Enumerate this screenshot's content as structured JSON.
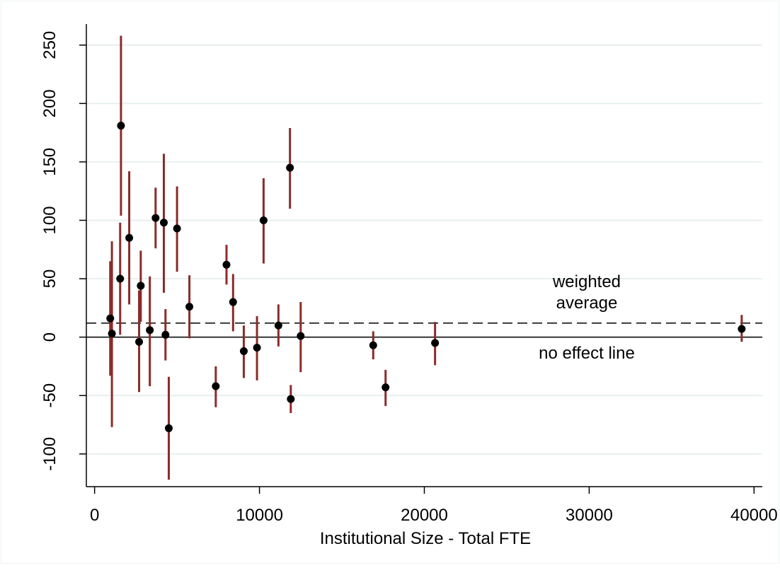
{
  "chart_data": {
    "type": "scatter",
    "subtype": "point estimates with confidence interval bars",
    "title": "",
    "xlabel": "Institutional Size - Total FTE",
    "ylabel": "",
    "xlim": [
      -500,
      40500
    ],
    "ylim": [
      -128,
      268
    ],
    "x_ticks": [
      0,
      10000,
      20000,
      30000,
      40000
    ],
    "x_tick_labels": [
      "0",
      "10000",
      "20000",
      "30000",
      "40000"
    ],
    "y_ticks": [
      -100,
      -50,
      0,
      50,
      100,
      150,
      200,
      250
    ],
    "y_tick_labels": [
      "-100",
      "-50",
      "0",
      "50",
      "100",
      "150",
      "200",
      "250"
    ],
    "y_grid": true,
    "x_grid": false,
    "reference_lines": [
      {
        "value": 0,
        "style": "solid",
        "label": "no effect line"
      },
      {
        "value": 12,
        "style": "dashed",
        "label_lines": [
          "weighted",
          "average"
        ]
      }
    ],
    "colors": {
      "marker": "#000000",
      "interval": "#8b2b2b",
      "grid": "#e8efef",
      "background": "#ffffff"
    },
    "points": [
      {
        "x": 950,
        "y": 16,
        "lo": -33,
        "hi": 65
      },
      {
        "x": 1050,
        "y": 3,
        "lo": -77,
        "hi": 82
      },
      {
        "x": 1550,
        "y": 50,
        "lo": 2,
        "hi": 98
      },
      {
        "x": 1600,
        "y": 181,
        "lo": 104,
        "hi": 258
      },
      {
        "x": 2100,
        "y": 85,
        "lo": 28,
        "hi": 142
      },
      {
        "x": 2700,
        "y": -4,
        "lo": -47,
        "hi": 40
      },
      {
        "x": 2800,
        "y": 44,
        "lo": 13,
        "hi": 74
      },
      {
        "x": 3350,
        "y": 6,
        "lo": -42,
        "hi": 52
      },
      {
        "x": 3700,
        "y": 102,
        "lo": 76,
        "hi": 128
      },
      {
        "x": 4200,
        "y": 98,
        "lo": 38,
        "hi": 157
      },
      {
        "x": 4300,
        "y": 2,
        "lo": -20,
        "hi": 24
      },
      {
        "x": 4500,
        "y": -78,
        "lo": -122,
        "hi": -34
      },
      {
        "x": 5000,
        "y": 93,
        "lo": 56,
        "hi": 129
      },
      {
        "x": 5750,
        "y": 26,
        "lo": -1,
        "hi": 53
      },
      {
        "x": 7350,
        "y": -42,
        "lo": -60,
        "hi": -25
      },
      {
        "x": 8000,
        "y": 62,
        "lo": 45,
        "hi": 79
      },
      {
        "x": 8400,
        "y": 30,
        "lo": 5,
        "hi": 54
      },
      {
        "x": 9050,
        "y": -12,
        "lo": -35,
        "hi": 10
      },
      {
        "x": 9850,
        "y": -9,
        "lo": -37,
        "hi": 18
      },
      {
        "x": 10250,
        "y": 100,
        "lo": 63,
        "hi": 136
      },
      {
        "x": 11150,
        "y": 10,
        "lo": -8,
        "hi": 28
      },
      {
        "x": 11850,
        "y": 145,
        "lo": 110,
        "hi": 179
      },
      {
        "x": 11900,
        "y": -53,
        "lo": -65,
        "hi": -41
      },
      {
        "x": 12500,
        "y": 1,
        "lo": -30,
        "hi": 30
      },
      {
        "x": 16900,
        "y": -7,
        "lo": -19,
        "hi": 5
      },
      {
        "x": 17650,
        "y": -43,
        "lo": -59,
        "hi": -28
      },
      {
        "x": 20650,
        "y": -5,
        "lo": -24,
        "hi": 13
      },
      {
        "x": 39250,
        "y": 7,
        "lo": -4,
        "hi": 19
      }
    ]
  }
}
